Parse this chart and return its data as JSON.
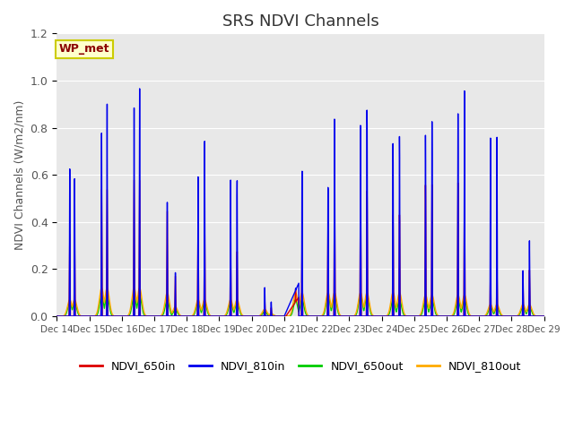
{
  "title": "SRS NDVI Channels",
  "ylabel": "NDVI Channels (W/m2/nm)",
  "annotation": "WP_met",
  "ylim": [
    0,
    1.2
  ],
  "plot_bg": "#e8e8e8",
  "fig_bg": "#ffffff",
  "series_colors": {
    "NDVI_650in": "#dd0000",
    "NDVI_810in": "#0000ee",
    "NDVI_650out": "#00cc00",
    "NDVI_810out": "#ffaa00"
  },
  "xtick_labels": [
    "Dec 14",
    "Dec 15",
    "Dec 16",
    "Dec 17",
    "Dec 18",
    "Dec 19",
    "Dec 20",
    "Dec 21",
    "Dec 22",
    "Dec 23",
    "Dec 24",
    "Dec 25",
    "Dec 26",
    "Dec 27",
    "Dec 28",
    "Dec 29"
  ],
  "ytick_values": [
    0.0,
    0.2,
    0.4,
    0.6,
    0.8,
    1.0,
    1.2
  ],
  "n_days": 16,
  "day_data": [
    {
      "day": 0,
      "label": "Dec 14",
      "peaks_810in": [
        0.63,
        0.59
      ],
      "peaks_650in": [
        0.35,
        0.34
      ],
      "peaks_650out": [
        0.06,
        0.06
      ],
      "peaks_810out": [
        0.07,
        0.07
      ],
      "offsets": [
        0.4,
        0.55
      ]
    },
    {
      "day": 1,
      "label": "Dec 15",
      "peaks_810in": [
        0.8,
        0.93
      ],
      "peaks_650in": [
        0.55,
        0.55
      ],
      "peaks_650out": [
        0.09,
        0.09
      ],
      "peaks_810out": [
        0.12,
        0.12
      ],
      "offsets": [
        0.38,
        0.55
      ]
    },
    {
      "day": 2,
      "label": "Dec 16",
      "peaks_810in": [
        0.93,
        1.02
      ],
      "peaks_650in": [
        0.6,
        0.6
      ],
      "peaks_650out": [
        0.09,
        0.09
      ],
      "peaks_810out": [
        0.12,
        0.12
      ],
      "offsets": [
        0.38,
        0.55
      ]
    },
    {
      "day": 3,
      "label": "Dec 17",
      "peaks_810in": [
        0.52,
        0.2
      ],
      "peaks_650in": [
        0.47,
        0.18
      ],
      "peaks_650out": [
        0.07,
        0.03
      ],
      "peaks_810out": [
        0.1,
        0.04
      ],
      "offsets": [
        0.4,
        0.65
      ]
    },
    {
      "day": 4,
      "label": "Dec 18",
      "peaks_810in": [
        0.65,
        0.82
      ],
      "peaks_650in": [
        0.47,
        0.47
      ],
      "peaks_650out": [
        0.06,
        0.06
      ],
      "peaks_810out": [
        0.07,
        0.07
      ],
      "offsets": [
        0.35,
        0.55
      ]
    },
    {
      "day": 5,
      "label": "Dec 19",
      "peaks_810in": [
        0.65,
        0.65
      ],
      "peaks_650in": [
        0.3,
        0.3
      ],
      "peaks_650out": [
        0.06,
        0.06
      ],
      "peaks_810out": [
        0.07,
        0.07
      ],
      "offsets": [
        0.35,
        0.55
      ]
    },
    {
      "day": 6,
      "label": "Dec 20",
      "peaks_810in": [
        0.14,
        0.07
      ],
      "peaks_650in": [
        0.08,
        0.04
      ],
      "peaks_650out": [
        0.02,
        0.01
      ],
      "peaks_810out": [
        0.03,
        0.01
      ],
      "offsets": [
        0.4,
        0.6
      ]
    },
    {
      "day": 7,
      "label": "Dec 21",
      "peaks_810in": [
        0.73,
        0.14
      ],
      "peaks_650in": [
        0.31,
        0.13
      ],
      "peaks_650out": [
        0.07,
        0.07
      ],
      "peaks_810out": [
        0.1,
        0.1
      ],
      "offsets": [
        0.55,
        0.35
      ]
    },
    {
      "day": 8,
      "label": "Dec 22",
      "peaks_810in": [
        0.65,
        0.99
      ],
      "peaks_650in": [
        0.41,
        0.59
      ],
      "peaks_650out": [
        0.09,
        0.09
      ],
      "peaks_810out": [
        0.1,
        0.1
      ],
      "offsets": [
        0.35,
        0.55
      ]
    },
    {
      "day": 9,
      "label": "Dec 23",
      "peaks_810in": [
        0.94,
        1.01
      ],
      "peaks_650in": [
        0.59,
        0.59
      ],
      "peaks_650out": [
        0.09,
        0.09
      ],
      "peaks_810out": [
        0.1,
        0.1
      ],
      "offsets": [
        0.35,
        0.55
      ]
    },
    {
      "day": 10,
      "label": "Dec 24",
      "peaks_810in": [
        0.83,
        0.86
      ],
      "peaks_650in": [
        0.47,
        0.47
      ],
      "peaks_650out": [
        0.07,
        0.07
      ],
      "peaks_810out": [
        0.1,
        0.1
      ],
      "offsets": [
        0.35,
        0.55
      ]
    },
    {
      "day": 11,
      "label": "Dec 25",
      "peaks_810in": [
        0.85,
        0.91
      ],
      "peaks_650in": [
        0.6,
        0.6
      ],
      "peaks_650out": [
        0.07,
        0.07
      ],
      "peaks_810out": [
        0.09,
        0.09
      ],
      "offsets": [
        0.35,
        0.55
      ]
    },
    {
      "day": 12,
      "label": "Dec 26",
      "peaks_810in": [
        0.93,
        1.03
      ],
      "peaks_650in": [
        0.6,
        0.6
      ],
      "peaks_650out": [
        0.07,
        0.07
      ],
      "peaks_810out": [
        0.09,
        0.09
      ],
      "offsets": [
        0.35,
        0.55
      ]
    },
    {
      "day": 13,
      "label": "Dec 27",
      "peaks_810in": [
        0.8,
        0.8
      ],
      "peaks_650in": [
        0.21,
        0.21
      ],
      "peaks_650out": [
        0.04,
        0.04
      ],
      "peaks_810out": [
        0.05,
        0.05
      ],
      "offsets": [
        0.35,
        0.55
      ]
    },
    {
      "day": 14,
      "label": "Dec 28",
      "peaks_810in": [
        0.2,
        0.33
      ],
      "peaks_650in": [
        0.16,
        0.2
      ],
      "peaks_650out": [
        0.04,
        0.04
      ],
      "peaks_810out": [
        0.05,
        0.05
      ],
      "offsets": [
        0.35,
        0.55
      ]
    },
    {
      "day": 15,
      "label": "Dec 29",
      "peaks_810in": [],
      "peaks_650in": [],
      "peaks_650out": [],
      "peaks_810out": [],
      "offsets": []
    }
  ]
}
